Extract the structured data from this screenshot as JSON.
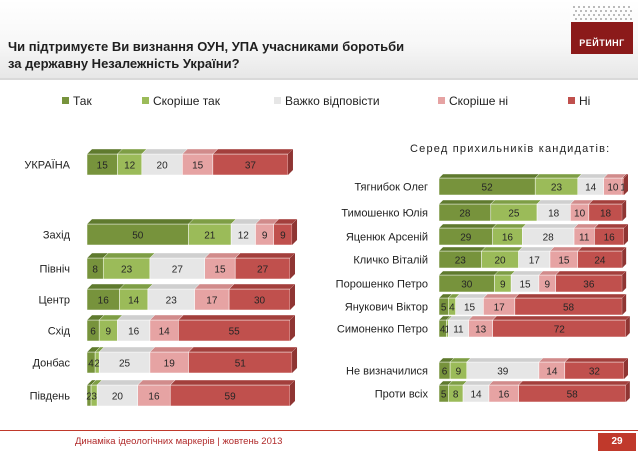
{
  "title_line1": "Чи підтримуєте Ви визнання ОУН, УПА учасниками боротьби",
  "title_line2": "за державну Незалежність України?",
  "logo_text": "РЕЙТИНГ",
  "right_subtitle": "Серед прихильників кандидатів:",
  "footer_text": "Динаміка ідеологічних маркерів  |  жовтень 2013",
  "page_number": "29",
  "legend": [
    {
      "label": "Так",
      "color": "#77933c"
    },
    {
      "label": "Скоріше так",
      "color": "#9bbb59"
    },
    {
      "label": "Важко відповісти",
      "color": "#e6e6e6"
    },
    {
      "label": "Скоріше ні",
      "color": "#e6a3a3"
    },
    {
      "label": "Ні",
      "color": "#c0504d"
    }
  ],
  "chart_data": [
    {
      "type": "bar",
      "orientation": "horizontal",
      "stacked": true,
      "categories": [
        "УКРАЇНА",
        "Захід",
        "Північ",
        "Центр",
        "Схід",
        "Донбас",
        "Південь"
      ],
      "series": [
        {
          "name": "Так",
          "values": [
            15,
            50,
            8,
            16,
            6,
            4,
            2
          ]
        },
        {
          "name": "Скоріше так",
          "values": [
            12,
            21,
            23,
            14,
            9,
            2,
            3
          ]
        },
        {
          "name": "Важко відповісти",
          "values": [
            20,
            12,
            27,
            23,
            16,
            25,
            20
          ]
        },
        {
          "name": "Скоріше ні",
          "values": [
            15,
            9,
            15,
            17,
            14,
            19,
            16
          ]
        },
        {
          "name": "Ні",
          "values": [
            37,
            9,
            27,
            30,
            55,
            51,
            59
          ]
        }
      ]
    },
    {
      "type": "bar",
      "orientation": "horizontal",
      "stacked": true,
      "subtitle": "Серед прихильників кандидатів:",
      "categories": [
        "Тягнибок Олег",
        "Тимошенко Юлія",
        "Яценюк Арсеній",
        "Кличко Віталій",
        "Порошенко Петро",
        "Янукович Віктор",
        "Симоненко Петро",
        "Не визначилися",
        "Проти всіх"
      ],
      "series": [
        {
          "name": "Так",
          "values": [
            52,
            28,
            29,
            23,
            30,
            5,
            4,
            6,
            5
          ]
        },
        {
          "name": "Скоріше так",
          "values": [
            23,
            25,
            16,
            20,
            9,
            4,
            1,
            9,
            8
          ]
        },
        {
          "name": "Важко відповісти",
          "values": [
            14,
            18,
            28,
            17,
            15,
            15,
            11,
            39,
            14
          ]
        },
        {
          "name": "Скоріше ні",
          "values": [
            10,
            10,
            11,
            15,
            9,
            17,
            13,
            14,
            16
          ]
        },
        {
          "name": "Ні",
          "values": [
            1,
            18,
            16,
            24,
            36,
            58,
            72,
            32,
            58
          ]
        }
      ]
    }
  ]
}
